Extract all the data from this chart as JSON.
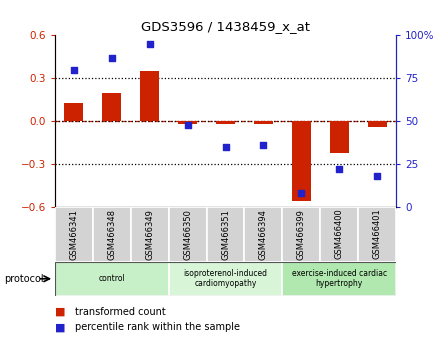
{
  "title": "GDS3596 / 1438459_x_at",
  "samples": [
    "GSM466341",
    "GSM466348",
    "GSM466349",
    "GSM466350",
    "GSM466351",
    "GSM466394",
    "GSM466399",
    "GSM466400",
    "GSM466401"
  ],
  "transformed_count": [
    0.13,
    0.2,
    0.35,
    -0.02,
    -0.02,
    -0.02,
    -0.56,
    -0.22,
    -0.04
  ],
  "percentile_rank": [
    80,
    87,
    95,
    48,
    35,
    36,
    8,
    22,
    18
  ],
  "groups": [
    {
      "label": "control",
      "start": 0,
      "end": 3,
      "color": "#c8f0c8"
    },
    {
      "label": "isoproterenol-induced\ncardiomyopathy",
      "start": 3,
      "end": 6,
      "color": "#d8f5d8"
    },
    {
      "label": "exercise-induced cardiac\nhypertrophy",
      "start": 6,
      "end": 9,
      "color": "#b0e8b0"
    }
  ],
  "bar_color": "#cc2200",
  "dot_color": "#2222cc",
  "ylim_left": [
    -0.6,
    0.6
  ],
  "ylim_right": [
    0,
    100
  ],
  "yticks_left": [
    -0.6,
    -0.3,
    0.0,
    0.3,
    0.6
  ],
  "yticks_right": [
    0,
    25,
    50,
    75,
    100
  ],
  "ytick_labels_right": [
    "0",
    "25",
    "50",
    "75",
    "100%"
  ],
  "hlines_dotted": [
    -0.3,
    0.3
  ],
  "hline_red_dashed": 0.0,
  "legend_bar_label": "transformed count",
  "legend_dot_label": "percentile rank within the sample",
  "protocol_label": "protocol"
}
